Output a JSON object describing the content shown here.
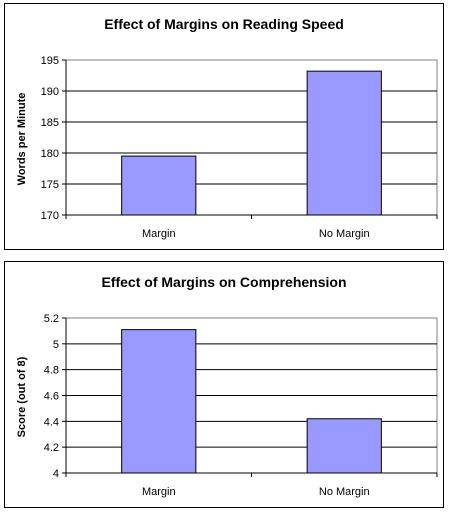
{
  "chart_data": [
    {
      "type": "bar",
      "title": "Effect of Margins on Reading Speed",
      "xlabel": "",
      "ylabel": "Words per Minute",
      "categories": [
        "Margin",
        "No Margin"
      ],
      "values": [
        179.5,
        193.2
      ],
      "ylim": [
        170,
        195
      ],
      "yticks": [
        170,
        175,
        180,
        185,
        190,
        195
      ],
      "grid": true,
      "legend": "none",
      "bar_color": "#9999ff"
    },
    {
      "type": "bar",
      "title": "Effect of Margins on Comprehension",
      "xlabel": "",
      "ylabel": "Score (out of 8)",
      "categories": [
        "Margin",
        "No Margin"
      ],
      "values": [
        5.11,
        4.42
      ],
      "ylim": [
        4,
        5.2
      ],
      "yticks": [
        "4",
        "4.2",
        "4.4",
        "4.6",
        "4.8",
        "5",
        "5.2"
      ],
      "grid": true,
      "legend": "none",
      "bar_color": "#9999ff"
    }
  ]
}
